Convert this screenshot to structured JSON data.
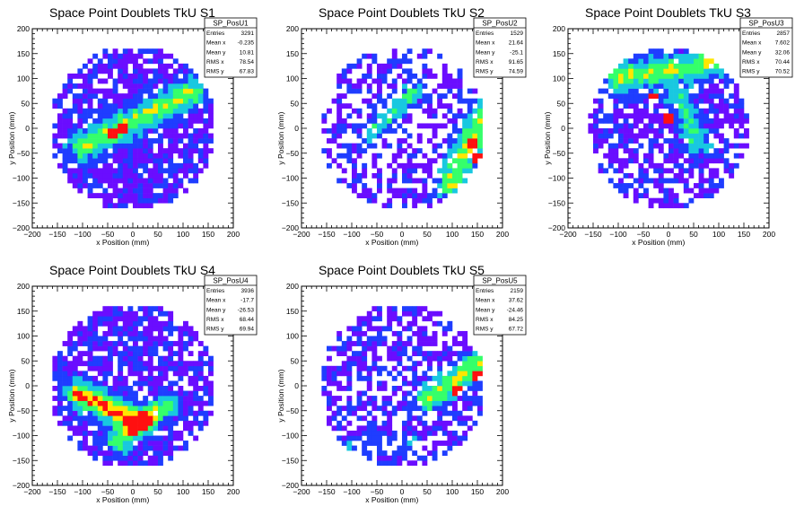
{
  "chart_data": [
    {
      "type": "heatmap",
      "title": "Space Point Doublets TkU S1",
      "xlabel": "x Position (mm)",
      "ylabel": "y Position (mm)",
      "xlim": [
        -200,
        200
      ],
      "ylim": [
        -200,
        200
      ],
      "xticks": [
        "−200",
        "−150",
        "−100",
        "−50",
        "0",
        "50",
        "100",
        "150",
        "200"
      ],
      "yticks": [
        "−200",
        "−150",
        "−100",
        "−50",
        "0",
        "50",
        "100",
        "150",
        "200"
      ],
      "stats": {
        "name": "SP_PosU1",
        "rows": [
          {
            "label": "Entries",
            "value": "3291"
          },
          {
            "label": "Mean x",
            "value": "-0.235"
          },
          {
            "label": "Mean y",
            "value": "10.81"
          },
          {
            "label": "RMS x",
            "value": "78.54"
          },
          {
            "label": "RMS y",
            "value": "67.83"
          }
        ]
      },
      "region_radius": 165,
      "bands": [
        {
          "x1": -100,
          "y1": -35,
          "x2": 120,
          "y2": 75,
          "width": 20,
          "weight": 3
        }
      ],
      "hotspots": [
        [
          -40,
          -10
        ],
        [
          -20,
          0
        ]
      ],
      "fill": 0.78
    },
    {
      "type": "heatmap",
      "title": "Space Point Doublets TkU S2",
      "xlabel": "x Position (mm)",
      "ylabel": "y Position (mm)",
      "xlim": [
        -200,
        200
      ],
      "ylim": [
        -200,
        200
      ],
      "xticks": [
        "−200",
        "−150",
        "−100",
        "−50",
        "0",
        "50",
        "100",
        "150",
        "200"
      ],
      "yticks": [
        "−200",
        "−150",
        "−100",
        "−50",
        "0",
        "50",
        "100",
        "150",
        "200"
      ],
      "stats": {
        "name": "SP_PosU2",
        "rows": [
          {
            "label": "Entries",
            "value": "1529"
          },
          {
            "label": "Mean x",
            "value": "21.64"
          },
          {
            "label": "Mean y",
            "value": "-25.1"
          },
          {
            "label": "RMS x",
            "value": "91.65"
          },
          {
            "label": "RMS y",
            "value": "74.59"
          }
        ]
      },
      "region_radius": 165,
      "bands": [
        {
          "x1": -60,
          "y1": -10,
          "x2": 30,
          "y2": 80,
          "width": 14,
          "weight": 2
        },
        {
          "x1": 100,
          "y1": -110,
          "x2": 160,
          "y2": 20,
          "width": 22,
          "weight": 3
        }
      ],
      "hotspots": [
        [
          140,
          -30
        ],
        [
          150,
          -60
        ]
      ],
      "fill": 0.5
    },
    {
      "type": "heatmap",
      "title": "Space Point Doublets TkU S3",
      "xlabel": "x Position (mm)",
      "ylabel": "y Position (mm)",
      "xlim": [
        -200,
        200
      ],
      "ylim": [
        -200,
        200
      ],
      "xticks": [
        "−200",
        "−150",
        "−100",
        "−50",
        "0",
        "50",
        "100",
        "150",
        "200"
      ],
      "yticks": [
        "−200",
        "−150",
        "−100",
        "−50",
        "0",
        "50",
        "100",
        "150",
        "200"
      ],
      "stats": {
        "name": "SP_PosU3",
        "rows": [
          {
            "label": "Entries",
            "value": "2857"
          },
          {
            "label": "Mean x",
            "value": "7.602"
          },
          {
            "label": "Mean y",
            "value": "32.06"
          },
          {
            "label": "RMS x",
            "value": "70.44"
          },
          {
            "label": "RMS y",
            "value": "70.52"
          }
        ]
      },
      "region_radius": 160,
      "bands": [
        {
          "x1": -100,
          "y1": 100,
          "x2": 80,
          "y2": 130,
          "width": 20,
          "weight": 3
        },
        {
          "x1": 20,
          "y1": 60,
          "x2": 60,
          "y2": -30,
          "width": 18,
          "weight": 2
        }
      ],
      "hotspots": [
        [
          0,
          20
        ],
        [
          -30,
          60
        ]
      ],
      "fill": 0.68
    },
    {
      "type": "heatmap",
      "title": "Space Point Doublets TkU S4",
      "xlabel": "x Position (mm)",
      "ylabel": "y Position (mm)",
      "xlim": [
        -200,
        200
      ],
      "ylim": [
        -200,
        200
      ],
      "xticks": [
        "−200",
        "−150",
        "−100",
        "−50",
        "0",
        "50",
        "100",
        "150",
        "200"
      ],
      "yticks": [
        "−200",
        "−150",
        "−100",
        "−50",
        "0",
        "50",
        "100",
        "150",
        "200"
      ],
      "stats": {
        "name": "SP_PosU4",
        "rows": [
          {
            "label": "Entries",
            "value": "3936"
          },
          {
            "label": "Mean x",
            "value": "-17.7"
          },
          {
            "label": "Mean y",
            "value": "-26.53"
          },
          {
            "label": "RMS x",
            "value": "68.44"
          },
          {
            "label": "RMS y",
            "value": "69.94"
          }
        ]
      },
      "region_radius": 165,
      "bands": [
        {
          "x1": -110,
          "y1": -15,
          "x2": 10,
          "y2": -70,
          "width": 18,
          "weight": 4
        },
        {
          "x1": -30,
          "y1": -110,
          "x2": 70,
          "y2": -40,
          "width": 16,
          "weight": 3
        }
      ],
      "hotspots": [
        [
          -30,
          -55
        ],
        [
          -10,
          -65
        ]
      ],
      "fill": 0.8
    },
    {
      "type": "heatmap",
      "title": "Space Point Doublets TkU S5",
      "xlabel": "x Position (mm)",
      "ylabel": "y Position (mm)",
      "xlim": [
        -200,
        200
      ],
      "ylim": [
        -200,
        200
      ],
      "xticks": [
        "−200",
        "−150",
        "−100",
        "−50",
        "0",
        "50",
        "100",
        "150",
        "200"
      ],
      "yticks": [
        "−200",
        "−150",
        "−100",
        "−50",
        "0",
        "50",
        "100",
        "150",
        "200"
      ],
      "stats": {
        "name": "SP_PosU5",
        "rows": [
          {
            "label": "Entries",
            "value": "2159"
          },
          {
            "label": "Mean x",
            "value": "37.62"
          },
          {
            "label": "Mean y",
            "value": "-24.46"
          },
          {
            "label": "RMS x",
            "value": "84.25"
          },
          {
            "label": "RMS y",
            "value": "67.72"
          }
        ]
      },
      "region_radius": 165,
      "bands": [
        {
          "x1": 50,
          "y1": -30,
          "x2": 160,
          "y2": 50,
          "width": 18,
          "weight": 3
        },
        {
          "x1": -120,
          "y1": -120,
          "x2": 20,
          "y2": -110,
          "width": 14,
          "weight": 1
        }
      ],
      "hotspots": [
        [
          150,
          20
        ],
        [
          110,
          -10
        ]
      ],
      "fill": 0.6
    }
  ],
  "palette": {
    "low": "#6a0dff",
    "mid1": "#1f3dff",
    "mid2": "#18c8e0",
    "mid3": "#35ff6a",
    "high1": "#ffe600",
    "high2": "#ff1010"
  }
}
